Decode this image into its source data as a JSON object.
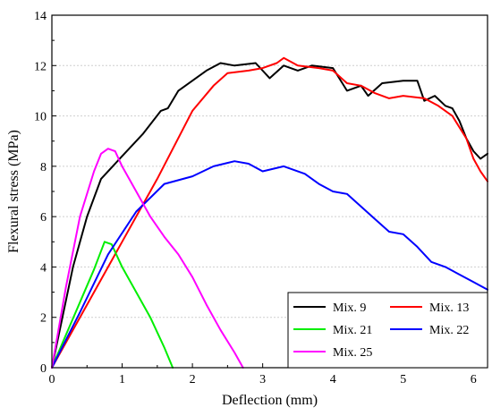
{
  "chart_data": {
    "type": "line",
    "xlabel": "Deflection (mm)",
    "ylabel": "Flexural stress (MPa)",
    "xlim": [
      0,
      6.2
    ],
    "ylim": [
      0,
      14
    ],
    "xticks": [
      0,
      1,
      2,
      3,
      4,
      5,
      6
    ],
    "yticks": [
      0,
      2,
      4,
      6,
      8,
      10,
      12,
      14
    ],
    "grid": "horizontal dotted",
    "legend_position": "bottom-right",
    "series": [
      {
        "name": "Mix. 9",
        "color": "#000000",
        "points": [
          [
            0,
            0
          ],
          [
            0.15,
            2.0
          ],
          [
            0.3,
            4.0
          ],
          [
            0.5,
            6.0
          ],
          [
            0.7,
            7.5
          ],
          [
            1.0,
            8.4
          ],
          [
            1.3,
            9.3
          ],
          [
            1.55,
            10.2
          ],
          [
            1.65,
            10.3
          ],
          [
            1.8,
            11.0
          ],
          [
            2.0,
            11.4
          ],
          [
            2.2,
            11.8
          ],
          [
            2.4,
            12.1
          ],
          [
            2.6,
            12.0
          ],
          [
            2.9,
            12.1
          ],
          [
            3.1,
            11.5
          ],
          [
            3.3,
            12.0
          ],
          [
            3.5,
            11.8
          ],
          [
            3.7,
            12.0
          ],
          [
            4.0,
            11.9
          ],
          [
            4.2,
            11.0
          ],
          [
            4.4,
            11.2
          ],
          [
            4.5,
            10.8
          ],
          [
            4.7,
            11.3
          ],
          [
            5.0,
            11.4
          ],
          [
            5.2,
            11.4
          ],
          [
            5.3,
            10.6
          ],
          [
            5.45,
            10.8
          ],
          [
            5.6,
            10.4
          ],
          [
            5.7,
            10.3
          ],
          [
            5.8,
            9.8
          ],
          [
            5.9,
            9.1
          ],
          [
            6.0,
            8.6
          ],
          [
            6.1,
            8.3
          ],
          [
            6.2,
            8.5
          ]
        ]
      },
      {
        "name": "Mix. 13",
        "color": "#ff0000",
        "points": [
          [
            0,
            0
          ],
          [
            0.5,
            2.5
          ],
          [
            1.0,
            5.0
          ],
          [
            1.5,
            7.5
          ],
          [
            2.0,
            10.2
          ],
          [
            2.3,
            11.2
          ],
          [
            2.5,
            11.7
          ],
          [
            2.8,
            11.8
          ],
          [
            3.0,
            11.9
          ],
          [
            3.2,
            12.1
          ],
          [
            3.3,
            12.3
          ],
          [
            3.5,
            12.0
          ],
          [
            3.8,
            11.9
          ],
          [
            4.0,
            11.8
          ],
          [
            4.2,
            11.3
          ],
          [
            4.4,
            11.2
          ],
          [
            4.6,
            10.9
          ],
          [
            4.8,
            10.7
          ],
          [
            5.0,
            10.8
          ],
          [
            5.3,
            10.7
          ],
          [
            5.5,
            10.4
          ],
          [
            5.7,
            10.0
          ],
          [
            5.9,
            9.1
          ],
          [
            6.0,
            8.3
          ],
          [
            6.1,
            7.8
          ],
          [
            6.2,
            7.4
          ]
        ]
      },
      {
        "name": "Mix. 21",
        "color": "#00ee00",
        "points": [
          [
            0,
            0
          ],
          [
            0.2,
            1.3
          ],
          [
            0.4,
            2.6
          ],
          [
            0.6,
            3.9
          ],
          [
            0.75,
            5.0
          ],
          [
            0.85,
            4.9
          ],
          [
            1.0,
            4.0
          ],
          [
            1.2,
            3.0
          ],
          [
            1.4,
            2.0
          ],
          [
            1.6,
            0.8
          ],
          [
            1.72,
            0
          ]
        ]
      },
      {
        "name": "Mix. 22",
        "color": "#0000ff",
        "points": [
          [
            0,
            0
          ],
          [
            0.4,
            2.2
          ],
          [
            0.8,
            4.5
          ],
          [
            1.2,
            6.2
          ],
          [
            1.6,
            7.3
          ],
          [
            2.0,
            7.6
          ],
          [
            2.3,
            8.0
          ],
          [
            2.6,
            8.2
          ],
          [
            2.8,
            8.1
          ],
          [
            3.0,
            7.8
          ],
          [
            3.3,
            8.0
          ],
          [
            3.6,
            7.7
          ],
          [
            3.8,
            7.3
          ],
          [
            4.0,
            7.0
          ],
          [
            4.2,
            6.9
          ],
          [
            4.4,
            6.4
          ],
          [
            4.6,
            5.9
          ],
          [
            4.8,
            5.4
          ],
          [
            5.0,
            5.3
          ],
          [
            5.2,
            4.8
          ],
          [
            5.4,
            4.2
          ],
          [
            5.6,
            4.0
          ],
          [
            5.8,
            3.7
          ],
          [
            6.0,
            3.4
          ],
          [
            6.2,
            3.1
          ]
        ]
      },
      {
        "name": "Mix. 25",
        "color": "#ff00ff",
        "points": [
          [
            0,
            0
          ],
          [
            0.2,
            3.2
          ],
          [
            0.4,
            6.0
          ],
          [
            0.6,
            7.8
          ],
          [
            0.7,
            8.5
          ],
          [
            0.8,
            8.7
          ],
          [
            0.9,
            8.6
          ],
          [
            1.0,
            8.0
          ],
          [
            1.2,
            7.0
          ],
          [
            1.4,
            6.0
          ],
          [
            1.6,
            5.2
          ],
          [
            1.8,
            4.5
          ],
          [
            2.0,
            3.6
          ],
          [
            2.2,
            2.5
          ],
          [
            2.4,
            1.5
          ],
          [
            2.6,
            0.6
          ],
          [
            2.72,
            0
          ]
        ]
      }
    ]
  }
}
